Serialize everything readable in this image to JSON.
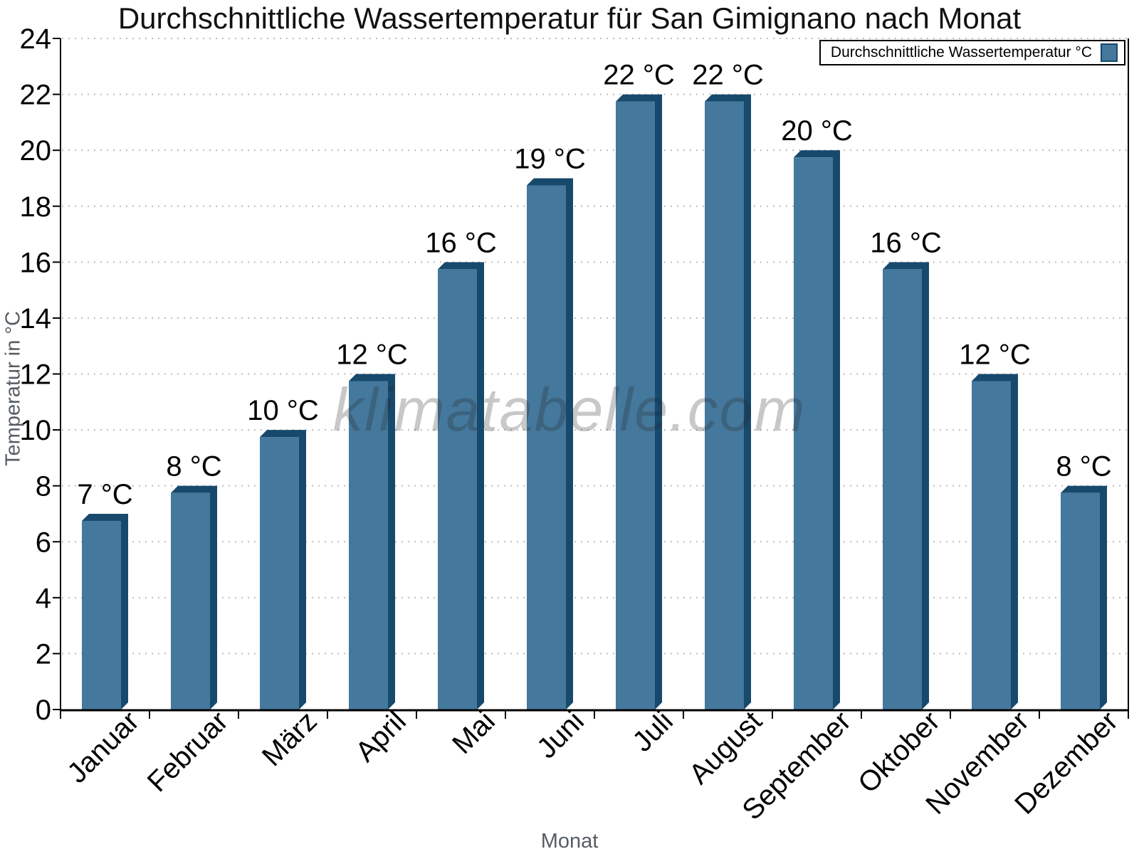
{
  "chart_data": {
    "type": "bar",
    "title": "Durchschnittliche Wassertemperatur für San Gimignano nach Monat",
    "xlabel": "Monat",
    "ylabel": "Temperatur in °C",
    "watermark": "klimatabelle.com",
    "legend": {
      "label": "Durchschnittliche Wassertemperatur °C",
      "position": "top-right"
    },
    "categories": [
      "Januar",
      "Februar",
      "März",
      "April",
      "Mai",
      "Juni",
      "Juli",
      "August",
      "September",
      "Oktober",
      "November",
      "Dezember"
    ],
    "values": [
      7,
      8,
      10,
      12,
      16,
      19,
      22,
      22,
      20,
      16,
      12,
      8
    ],
    "bar_labels": [
      "7 °C",
      "8 °C",
      "10 °C",
      "12 °C",
      "16 °C",
      "19 °C",
      "22 °C",
      "22 °C",
      "20 °C",
      "16 °C",
      "12 °C",
      "8 °C"
    ],
    "ylim": [
      0,
      24
    ],
    "ytick_step": 2,
    "yticks": [
      0,
      2,
      4,
      6,
      8,
      10,
      12,
      14,
      16,
      18,
      20,
      22,
      24
    ],
    "grid": {
      "horizontal": true,
      "style": "dotted"
    },
    "legend_visible": true,
    "colors": {
      "bar_face": "#45789D",
      "bar_edge": "#17496C",
      "grid": "#bcbcbc",
      "axis": "#000000",
      "axis_title": "#565d64",
      "label_text": "#000000"
    }
  }
}
